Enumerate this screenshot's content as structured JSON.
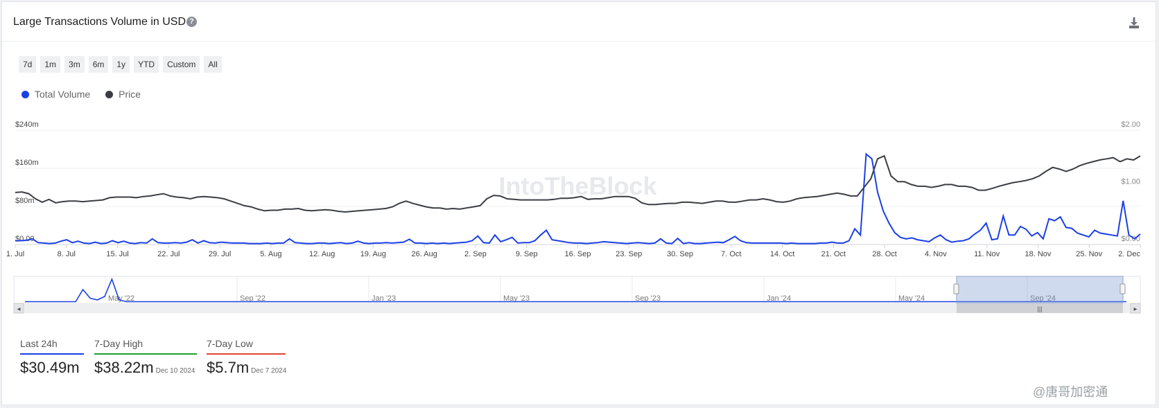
{
  "header": {
    "title": "Large Transactions Volume in USD",
    "help_icon": "?",
    "download_icon": "download-icon"
  },
  "ranges": [
    "7d",
    "1m",
    "3m",
    "6m",
    "1y",
    "YTD",
    "Custom",
    "All"
  ],
  "legend": [
    {
      "label": "Total Volume",
      "color": "#1a3fe6"
    },
    {
      "label": "Price",
      "color": "#3a3d42"
    }
  ],
  "watermark": "IntoTheBlock",
  "corner_tag": "@唐哥加密通",
  "stats": [
    {
      "label": "Last 24h",
      "value": "$30.49m",
      "date": "",
      "color": "#1a3fe6"
    },
    {
      "label": "7-Day High",
      "value": "$38.22m",
      "date": "Dec 10 2024",
      "color": "#1f9d2f"
    },
    {
      "label": "7-Day Low",
      "value": "$5.7m",
      "date": "Dec 7 2024",
      "color": "#e0452e"
    }
  ],
  "chart_data": {
    "type": "line",
    "title": "Large Transactions Volume in USD",
    "x_start": "2024-07-01",
    "x_end": "2024-12-04",
    "x_tick_labels": [
      "1. Jul",
      "8. Jul",
      "15. Jul",
      "22. Jul",
      "29. Jul",
      "5. Aug",
      "12. Aug",
      "19. Aug",
      "26. Aug",
      "2. Sep",
      "9. Sep",
      "16. Sep",
      "23. Sep",
      "30. Sep",
      "7. Oct",
      "14. Oct",
      "21. Oct",
      "28. Oct",
      "4. Nov",
      "11. Nov",
      "18. Nov",
      "25. Nov",
      "2. Dec"
    ],
    "y_left": {
      "tick_labels": [
        "$0.00",
        "$80m",
        "$160m",
        "$240m"
      ],
      "range": [
        0,
        240
      ],
      "unit": "millions USD"
    },
    "y_right": {
      "tick_labels": [
        "$0.00",
        "$1.00",
        "$2.00"
      ],
      "range": [
        0,
        2
      ]
    },
    "grid": true,
    "legend_position": "top-left",
    "series": [
      {
        "name": "Total Volume",
        "axis": "left",
        "color": "#1a3fe6",
        "values": [
          8,
          8,
          9,
          12,
          4,
          3,
          2,
          3,
          7,
          10,
          4,
          7,
          3,
          2,
          5,
          2,
          3,
          8,
          4,
          7,
          3,
          2,
          4,
          3,
          12,
          4,
          3,
          3,
          4,
          3,
          5,
          10,
          3,
          8,
          4,
          3,
          5,
          4,
          3,
          3,
          3,
          2,
          2,
          2,
          3,
          2,
          3,
          3,
          12,
          4,
          3,
          2,
          2,
          3,
          3,
          2,
          3,
          4,
          2,
          3,
          7,
          3,
          2,
          3,
          3,
          4,
          3,
          4,
          5,
          11,
          3,
          3,
          2,
          3,
          2,
          3,
          2,
          3,
          4,
          5,
          8,
          18,
          4,
          3,
          20,
          6,
          10,
          15,
          3,
          4,
          4,
          8,
          20,
          30,
          10,
          8,
          6,
          4,
          3,
          3,
          2,
          3,
          4,
          6,
          5,
          4,
          3,
          2,
          3,
          4,
          3,
          2,
          3,
          12,
          3,
          2,
          13,
          2,
          4,
          2,
          2,
          3,
          4,
          5,
          4,
          10,
          17,
          8,
          4,
          3,
          3,
          3,
          3,
          3,
          3,
          2,
          3,
          2,
          2,
          2,
          2,
          3,
          3,
          5,
          3,
          3,
          8,
          33,
          20,
          190,
          180,
          110,
          70,
          45,
          25,
          15,
          12,
          14,
          10,
          8,
          6,
          14,
          20,
          10,
          5,
          7,
          8,
          12,
          22,
          30,
          45,
          10,
          12,
          60,
          20,
          20,
          38,
          32,
          18,
          25,
          12,
          54,
          50,
          58,
          36,
          34,
          24,
          20,
          16,
          30,
          24,
          22,
          20,
          18,
          92,
          20,
          12,
          22
        ]
      },
      {
        "name": "Price",
        "axis": "right",
        "color": "#3a3d42",
        "values": [
          0.91,
          0.92,
          0.89,
          0.8,
          0.74,
          0.79,
          0.73,
          0.75,
          0.76,
          0.76,
          0.75,
          0.76,
          0.77,
          0.78,
          0.82,
          0.83,
          0.83,
          0.83,
          0.82,
          0.84,
          0.85,
          0.87,
          0.89,
          0.85,
          0.83,
          0.82,
          0.8,
          0.83,
          0.84,
          0.83,
          0.82,
          0.8,
          0.76,
          0.72,
          0.68,
          0.66,
          0.62,
          0.59,
          0.6,
          0.6,
          0.62,
          0.62,
          0.63,
          0.6,
          0.59,
          0.6,
          0.61,
          0.6,
          0.58,
          0.57,
          0.58,
          0.59,
          0.6,
          0.61,
          0.62,
          0.63,
          0.66,
          0.72,
          0.76,
          0.72,
          0.69,
          0.66,
          0.64,
          0.64,
          0.62,
          0.63,
          0.62,
          0.64,
          0.66,
          0.68,
          0.8,
          0.86,
          0.85,
          0.8,
          0.79,
          0.78,
          0.78,
          0.78,
          0.78,
          0.78,
          0.79,
          0.81,
          0.81,
          0.82,
          0.84,
          0.79,
          0.8,
          0.8,
          0.82,
          0.84,
          0.84,
          0.84,
          0.81,
          0.73,
          0.7,
          0.7,
          0.71,
          0.72,
          0.72,
          0.74,
          0.74,
          0.73,
          0.72,
          0.74,
          0.76,
          0.76,
          0.74,
          0.74,
          0.76,
          0.78,
          0.78,
          0.8,
          0.78,
          0.75,
          0.74,
          0.76,
          0.8,
          0.82,
          0.83,
          0.84,
          0.86,
          0.88,
          0.9,
          0.88,
          0.85,
          0.85,
          1.0,
          1.15,
          1.5,
          1.55,
          1.2,
          1.1,
          1.1,
          1.05,
          1.02,
          1.02,
          1.0,
          1.02,
          1.05,
          1.05,
          1.02,
          1.02,
          1.0,
          0.95,
          0.95,
          0.98,
          1.02,
          1.05,
          1.08,
          1.1,
          1.12,
          1.15,
          1.2,
          1.28,
          1.35,
          1.32,
          1.28,
          1.32,
          1.38,
          1.42,
          1.45,
          1.48,
          1.5,
          1.52,
          1.45,
          1.5,
          1.48,
          1.55
        ],
        "note": ""
      }
    ],
    "navigator": {
      "tick_labels": [
        "May '22",
        "Sep '22",
        "Jan '23",
        "May '23",
        "Sep '23",
        "Jan '24",
        "May '24",
        "Sep '24"
      ]
    }
  }
}
